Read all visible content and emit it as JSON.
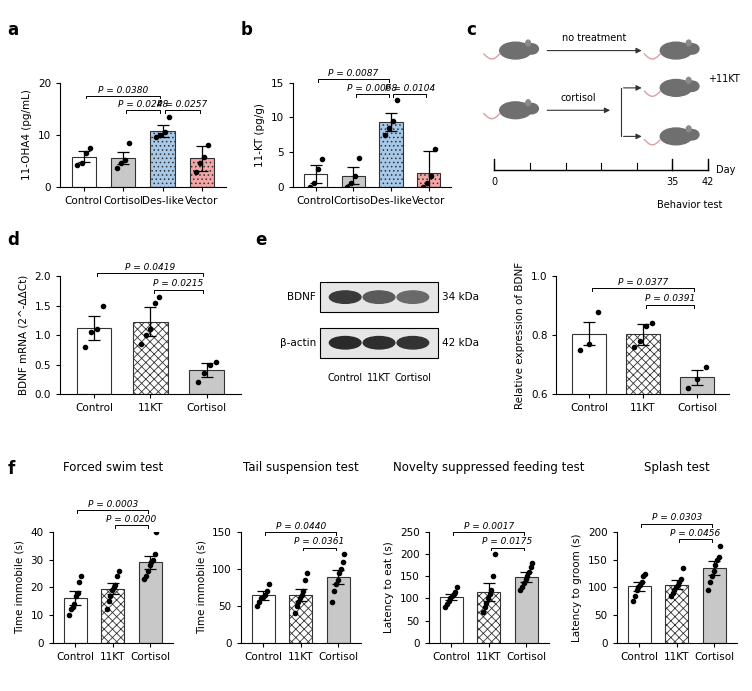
{
  "chart_data": [
    {
      "type": "bar",
      "panel": "a",
      "y_label": "11-OHA4 (pg/mL)",
      "categories": [
        "Control",
        "Cortisol",
        "Des-like",
        "Vector"
      ],
      "values": [
        5.8,
        5.5,
        10.7,
        5.5
      ],
      "errors": [
        1.0,
        1.2,
        1.2,
        2.4
      ],
      "points": [
        [
          4.2,
          4.5,
          6.5,
          7.5
        ],
        [
          3.5,
          4.5,
          5.2,
          8.5
        ],
        [
          9.5,
          10.0,
          10.5,
          13.5
        ],
        [
          2.8,
          4.5,
          5.7,
          8.0
        ]
      ],
      "colors": [
        "#ffffff",
        "#c8c8c8",
        "#a8c8e8",
        "#f4a6a6"
      ],
      "ylim": [
        0,
        20
      ],
      "yticks": [
        0,
        10,
        20
      ],
      "comparisons": [
        {
          "pair": [
            "Control",
            "Des-like"
          ],
          "label": "P = 0.0380"
        },
        {
          "pair": [
            "Cortisol",
            "Des-like"
          ],
          "label": "P = 0.0248"
        },
        {
          "pair": [
            "Des-like",
            "Vector"
          ],
          "label": "P = 0.0257"
        }
      ]
    },
    {
      "type": "bar",
      "panel": "b",
      "y_label": "11-KT (pg/g)",
      "categories": [
        "Control",
        "Cortisol",
        "Des-like",
        "Vector"
      ],
      "values": [
        1.8,
        1.6,
        9.4,
        2.0
      ],
      "errors": [
        1.3,
        1.3,
        1.3,
        3.2
      ],
      "points": [
        [
          0.0,
          0.5,
          2.5,
          4.0
        ],
        [
          0.0,
          0.5,
          1.5,
          4.2
        ],
        [
          7.5,
          8.5,
          9.5,
          12.5
        ],
        [
          0.0,
          0.5,
          1.5,
          5.5
        ]
      ],
      "colors": [
        "#ffffff",
        "#c8c8c8",
        "#a8c8e8",
        "#f4a6a6"
      ],
      "ylim": [
        0,
        15
      ],
      "yticks": [
        0,
        5,
        10,
        15
      ],
      "comparisons": [
        {
          "pair": [
            "Control",
            "Des-like"
          ],
          "label": "P = 0.0087"
        },
        {
          "pair": [
            "Cortisol",
            "Des-like"
          ],
          "label": "P = 0.0068"
        },
        {
          "pair": [
            "Des-like",
            "Vector"
          ],
          "label": "P = 0.0104"
        }
      ]
    },
    {
      "type": "bar",
      "panel": "d",
      "y_label": "BDNF mRNA (2^-ΔΔCt)",
      "categories": [
        "Control",
        "11KT",
        "Cortisol"
      ],
      "values": [
        1.12,
        1.23,
        0.4
      ],
      "errors": [
        0.2,
        0.25,
        0.12
      ],
      "points": [
        [
          0.8,
          1.05,
          1.1,
          1.5
        ],
        [
          0.85,
          1.0,
          1.1,
          1.55,
          1.65
        ],
        [
          0.2,
          0.35,
          0.5,
          0.55
        ]
      ],
      "colors": [
        "#ffffff",
        "#ffffff",
        "#c8c8c8"
      ],
      "ylim": [
        0,
        2.0
      ],
      "yticks": [
        {
          "value": 0,
          "label": "0.0"
        },
        {
          "value": 0.5,
          "label": "0.5"
        },
        {
          "value": 1.0,
          "label": "1.0"
        },
        {
          "value": 1.5,
          "label": "1.5"
        },
        {
          "value": 2.0,
          "label": "2.0"
        }
      ],
      "comparisons": [
        {
          "pair": [
            "Control",
            "Cortisol"
          ],
          "label": "P = 0.0419"
        },
        {
          "pair": [
            "11KT",
            "Cortisol"
          ],
          "label": "P = 0.0215"
        }
      ]
    },
    {
      "type": "bar",
      "panel": "e",
      "y_label": "Relative expression of BDNF",
      "categories": [
        "Control",
        "11KT",
        "Cortisol"
      ],
      "values": [
        0.805,
        0.803,
        0.656
      ],
      "errors": [
        0.04,
        0.035,
        0.025
      ],
      "points": [
        [
          0.75,
          0.77,
          0.88
        ],
        [
          0.76,
          0.78,
          0.83,
          0.84
        ],
        [
          0.62,
          0.65,
          0.69
        ]
      ],
      "colors": [
        "#ffffff",
        "#ffffff",
        "#c8c8c8"
      ],
      "ylim": [
        0.6,
        1.0
      ],
      "yticks": [
        {
          "value": 0.6,
          "label": "0.6"
        },
        {
          "value": 0.8,
          "label": "0.8"
        },
        {
          "value": 1.0,
          "label": "1.0"
        }
      ],
      "comparisons": [
        {
          "pair": [
            "Control",
            "Cortisol"
          ],
          "label": "P = 0.0377"
        },
        {
          "pair": [
            "11KT",
            "Cortisol"
          ],
          "label": "P = 0.0391"
        }
      ]
    },
    {
      "type": "bar",
      "panel": "f",
      "title": "Forced swim test",
      "y_label": "Time immobile (s)",
      "categories": [
        "Control",
        "11KT",
        "Cortisol"
      ],
      "values": [
        16,
        19.5,
        29
      ],
      "errors": [
        2.5,
        2,
        2.5
      ],
      "points": [
        [
          10,
          12,
          13,
          14,
          17,
          18,
          22,
          24
        ],
        [
          12,
          15,
          17,
          19,
          20,
          21,
          24,
          26
        ],
        [
          23,
          24,
          26,
          28,
          29,
          30,
          32,
          40
        ]
      ],
      "colors": [
        "#ffffff",
        "#ffffff",
        "#c8c8c8"
      ],
      "ylim": [
        0,
        40
      ],
      "yticks": [
        0,
        10,
        20,
        30,
        40
      ],
      "comparisons": [
        {
          "pair": [
            "Control",
            "Cortisol"
          ],
          "label": "P = 0.0003"
        },
        {
          "pair": [
            "11KT",
            "Cortisol"
          ],
          "label": "P = 0.0200"
        }
      ]
    },
    {
      "type": "bar",
      "title": "Tail suspension test",
      "y_label": "Time immobile (s)",
      "categories": [
        "Control",
        "11KT",
        "Cortisol"
      ],
      "values": [
        64,
        65,
        89
      ],
      "errors": [
        6,
        8,
        10
      ],
      "points": [
        [
          50,
          55,
          60,
          62,
          65,
          70,
          80
        ],
        [
          40,
          50,
          55,
          60,
          65,
          70,
          85,
          95
        ],
        [
          55,
          70,
          80,
          85,
          95,
          100,
          110,
          120
        ]
      ],
      "colors": [
        "#ffffff",
        "#ffffff",
        "#c8c8c8"
      ],
      "ylim": [
        0,
        150
      ],
      "yticks": [
        0,
        50,
        100,
        150
      ],
      "comparisons": [
        {
          "pair": [
            "Control",
            "Cortisol"
          ],
          "label": "P = 0.0440"
        },
        {
          "pair": [
            "11KT",
            "Cortisol"
          ],
          "label": "P = 0.0361"
        }
      ]
    },
    {
      "type": "bar",
      "title": "Novelty suppressed feeding test",
      "y_label": "Latency to eat (s)",
      "categories": [
        "Control",
        "11KT",
        "Cortisol"
      ],
      "values": [
        103,
        115,
        148
      ],
      "errors": [
        7,
        20,
        12
      ],
      "points": [
        [
          80,
          88,
          95,
          100,
          105,
          110,
          115,
          125
        ],
        [
          70,
          80,
          90,
          100,
          110,
          120,
          150,
          200
        ],
        [
          120,
          125,
          135,
          145,
          150,
          160,
          170,
          180
        ]
      ],
      "colors": [
        "#ffffff",
        "#ffffff",
        "#c8c8c8"
      ],
      "ylim": [
        0,
        250
      ],
      "yticks": [
        0,
        50,
        100,
        150,
        200,
        250
      ],
      "comparisons": [
        {
          "pair": [
            "Control",
            "Cortisol"
          ],
          "label": "P = 0.0017"
        },
        {
          "pair": [
            "11KT",
            "Cortisol"
          ],
          "label": "P = 0.0175"
        }
      ]
    },
    {
      "type": "bar",
      "title": "Splash test",
      "y_label": "Latency to groom (s)",
      "categories": [
        "Control",
        "11KT",
        "Cortisol"
      ],
      "values": [
        102,
        105,
        135
      ],
      "errors": [
        8,
        8,
        12
      ],
      "points": [
        [
          75,
          85,
          95,
          100,
          105,
          110,
          120,
          125
        ],
        [
          85,
          90,
          95,
          100,
          105,
          110,
          115,
          135
        ],
        [
          95,
          110,
          120,
          130,
          140,
          150,
          155,
          175
        ]
      ],
      "colors": [
        "#ffffff",
        "#ffffff",
        "#c8c8c8"
      ],
      "ylim": [
        0,
        200
      ],
      "yticks": [
        0,
        50,
        100,
        150,
        200
      ],
      "comparisons": [
        {
          "pair": [
            "Control",
            "Cortisol"
          ],
          "label": "P = 0.0303"
        },
        {
          "pair": [
            "11KT",
            "Cortisol"
          ],
          "label": "P = 0.0456"
        }
      ]
    }
  ],
  "diagram": {
    "panel": "c",
    "arrows": [
      "no treatment",
      "cortisol"
    ],
    "treatment": "+11KT",
    "timeline": {
      "xlim": [
        0,
        42
      ],
      "ticks": [
        0,
        35,
        42
      ],
      "label": "Day",
      "event": "Behavior test"
    }
  },
  "blot": {
    "rows": [
      {
        "protein": "BDNF",
        "size": "34 kDa"
      },
      {
        "protein": "β-actin",
        "size": "42 kDa"
      }
    ],
    "lanes": [
      "Control",
      "11KT",
      "Cortisol"
    ]
  }
}
